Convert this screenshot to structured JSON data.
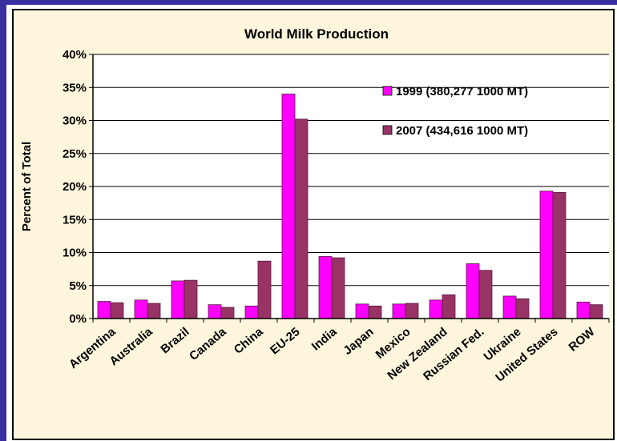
{
  "colors": {
    "frame_bg": "#fdf6dc",
    "frame_border": "#000000",
    "accent_top": "#3a2fa0",
    "accent_side": "#3a2fa0",
    "series_1999": "#ff00ff",
    "series_2007": "#993366"
  },
  "chart_data": {
    "type": "bar",
    "title": "World Milk Production",
    "xlabel": "",
    "ylabel": "Percent of Total",
    "ylim": [
      0,
      40
    ],
    "yticks": [
      "0%",
      "5%",
      "10%",
      "15%",
      "20%",
      "25%",
      "30%",
      "35%",
      "40%"
    ],
    "grid": "horizontal",
    "legend_position": "top-right",
    "categories": [
      "Argentina",
      "Australia",
      "Brazil",
      "Canada",
      "China",
      "EU-25",
      "India",
      "Japan",
      "Mexico",
      "New Zealand",
      "Russian Fed.",
      "Ukraine",
      "United States",
      "ROW"
    ],
    "series": [
      {
        "name": "1999 (380,277 1000 MT)",
        "color": "#ff00ff",
        "values": [
          2.6,
          2.8,
          5.7,
          2.1,
          1.9,
          34.0,
          9.4,
          2.2,
          2.2,
          2.8,
          8.3,
          3.4,
          19.3,
          2.5
        ]
      },
      {
        "name": "2007 (434,616 1000 MT)",
        "color": "#993366",
        "values": [
          2.4,
          2.3,
          5.8,
          1.7,
          8.7,
          30.2,
          9.2,
          1.9,
          2.3,
          3.6,
          7.3,
          3.0,
          19.1,
          2.1
        ]
      }
    ]
  }
}
